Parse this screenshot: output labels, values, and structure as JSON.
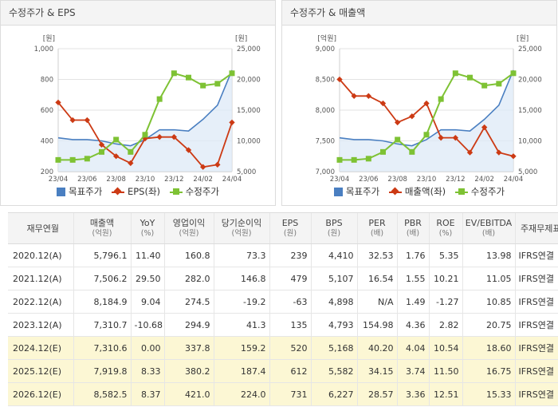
{
  "chart_data": [
    {
      "type": "line",
      "title": "수정주가 & EPS",
      "categories": [
        "23/04",
        "23/05",
        "23/06",
        "23/07",
        "23/08",
        "23/09",
        "23/10",
        "23/11",
        "23/12",
        "24/01",
        "24/02",
        "24/03",
        "24/04"
      ],
      "x_tick_labels": [
        "23/04",
        "23/06",
        "23/08",
        "23/10",
        "23/12",
        "24/02",
        "24/04"
      ],
      "left_axis": {
        "unit": "[원]",
        "min": 200,
        "max": 1000,
        "ticks": [
          200,
          400,
          600,
          800,
          1000
        ],
        "tick_labels": [
          "200",
          "400",
          "600",
          "800",
          "1,000"
        ]
      },
      "right_axis": {
        "unit": "[원]",
        "min": 5000,
        "max": 25000,
        "ticks": [
          5000,
          10000,
          15000,
          20000,
          25000
        ],
        "tick_labels": [
          "5,000",
          "10,000",
          "15,000",
          "20,000",
          "25,000"
        ]
      },
      "series": [
        {
          "name": "목표주가",
          "axis": "right",
          "color": "#4a7fc1",
          "values": [
            10500,
            10200,
            10200,
            10000,
            9500,
            9200,
            10200,
            11800,
            11800,
            11600,
            13500,
            15800,
            21500
          ]
        },
        {
          "name": "EPS(좌)",
          "axis": "left",
          "color": "#cc3a14",
          "values": [
            650,
            535,
            535,
            375,
            300,
            255,
            415,
            425,
            425,
            340,
            230,
            245,
            520
          ]
        },
        {
          "name": "수정주가",
          "axis": "right",
          "color": "#7ec234",
          "values": [
            6900,
            6900,
            7100,
            8200,
            10200,
            8200,
            11000,
            16800,
            21000,
            20300,
            19000,
            19300,
            21000
          ]
        }
      ]
    },
    {
      "type": "line",
      "title": "수정주가 & 매출액",
      "categories": [
        "23/04",
        "23/05",
        "23/06",
        "23/07",
        "23/08",
        "23/09",
        "23/10",
        "23/11",
        "23/12",
        "24/01",
        "24/02",
        "24/03",
        "24/04"
      ],
      "x_tick_labels": [
        "23/04",
        "23/06",
        "23/08",
        "23/10",
        "23/12",
        "24/02",
        "24/04"
      ],
      "left_axis": {
        "unit": "[억원]",
        "min": 7000,
        "max": 9000,
        "ticks": [
          7000,
          7500,
          8000,
          8500,
          9000
        ],
        "tick_labels": [
          "7,000",
          "7,500",
          "8,000",
          "8,500",
          "9,000"
        ]
      },
      "right_axis": {
        "unit": "[원]",
        "min": 5000,
        "max": 25000,
        "ticks": [
          5000,
          10000,
          15000,
          20000,
          25000
        ],
        "tick_labels": [
          "5,000",
          "10,000",
          "15,000",
          "20,000",
          "25,000"
        ]
      },
      "series": [
        {
          "name": "목표주가",
          "axis": "right",
          "color": "#4a7fc1",
          "values": [
            10500,
            10200,
            10200,
            10000,
            9500,
            9200,
            10200,
            11800,
            11800,
            11600,
            13500,
            15800,
            21500
          ]
        },
        {
          "name": "매출액(좌)",
          "axis": "left",
          "color": "#cc3a14",
          "values": [
            8500,
            8230,
            8230,
            8110,
            7800,
            7900,
            8110,
            7550,
            7550,
            7310,
            7720,
            7310,
            7250
          ]
        },
        {
          "name": "수정주가",
          "axis": "right",
          "color": "#7ec234",
          "values": [
            6900,
            6900,
            7100,
            8200,
            10200,
            8200,
            11000,
            16800,
            21000,
            20300,
            19000,
            19300,
            21000
          ]
        }
      ]
    },
    {
      "type": "table",
      "headers": [
        {
          "label": "재무연월",
          "unit": ""
        },
        {
          "label": "매출액",
          "unit": "(억원)"
        },
        {
          "label": "YoY",
          "unit": "(%)"
        },
        {
          "label": "영업이익",
          "unit": "(억원)"
        },
        {
          "label": "당기순이익",
          "unit": "(억원)"
        },
        {
          "label": "EPS",
          "unit": "(원)"
        },
        {
          "label": "BPS",
          "unit": "(원)"
        },
        {
          "label": "PER",
          "unit": "(배)"
        },
        {
          "label": "PBR",
          "unit": "(배)"
        },
        {
          "label": "ROE",
          "unit": "(%)"
        },
        {
          "label": "EV/EBITDA",
          "unit": "(배)"
        },
        {
          "label": "주재무제표",
          "unit": ""
        }
      ],
      "rows": [
        {
          "estimate": false,
          "cells": [
            "2020.12(A)",
            "5,796.1",
            "11.40",
            "160.8",
            "73.3",
            "239",
            "4,410",
            "32.53",
            "1.76",
            "5.35",
            "13.98",
            "IFRS연결"
          ]
        },
        {
          "estimate": false,
          "cells": [
            "2021.12(A)",
            "7,506.2",
            "29.50",
            "282.0",
            "146.8",
            "479",
            "5,107",
            "16.54",
            "1.55",
            "10.21",
            "11.05",
            "IFRS연결"
          ]
        },
        {
          "estimate": false,
          "cells": [
            "2022.12(A)",
            "8,184.9",
            "9.04",
            "274.5",
            "-19.2",
            "-63",
            "4,898",
            "N/A",
            "1.49",
            "-1.27",
            "10.85",
            "IFRS연결"
          ]
        },
        {
          "estimate": false,
          "cells": [
            "2023.12(A)",
            "7,310.7",
            "-10.68",
            "294.9",
            "41.3",
            "135",
            "4,793",
            "154.98",
            "4.36",
            "2.82",
            "20.75",
            "IFRS연결"
          ]
        },
        {
          "estimate": true,
          "cells": [
            "2024.12(E)",
            "7,310.6",
            "0.00",
            "337.8",
            "159.2",
            "520",
            "5,168",
            "40.20",
            "4.04",
            "10.54",
            "18.60",
            "IFRS연결"
          ]
        },
        {
          "estimate": true,
          "cells": [
            "2025.12(E)",
            "7,919.8",
            "8.33",
            "380.2",
            "187.4",
            "612",
            "5,582",
            "34.15",
            "3.74",
            "11.50",
            "16.75",
            "IFRS연결"
          ]
        },
        {
          "estimate": true,
          "cells": [
            "2026.12(E)",
            "8,582.5",
            "8.37",
            "421.0",
            "224.0",
            "731",
            "6,227",
            "28.57",
            "3.36",
            "12.51",
            "15.33",
            "IFRS연결"
          ]
        }
      ]
    }
  ]
}
